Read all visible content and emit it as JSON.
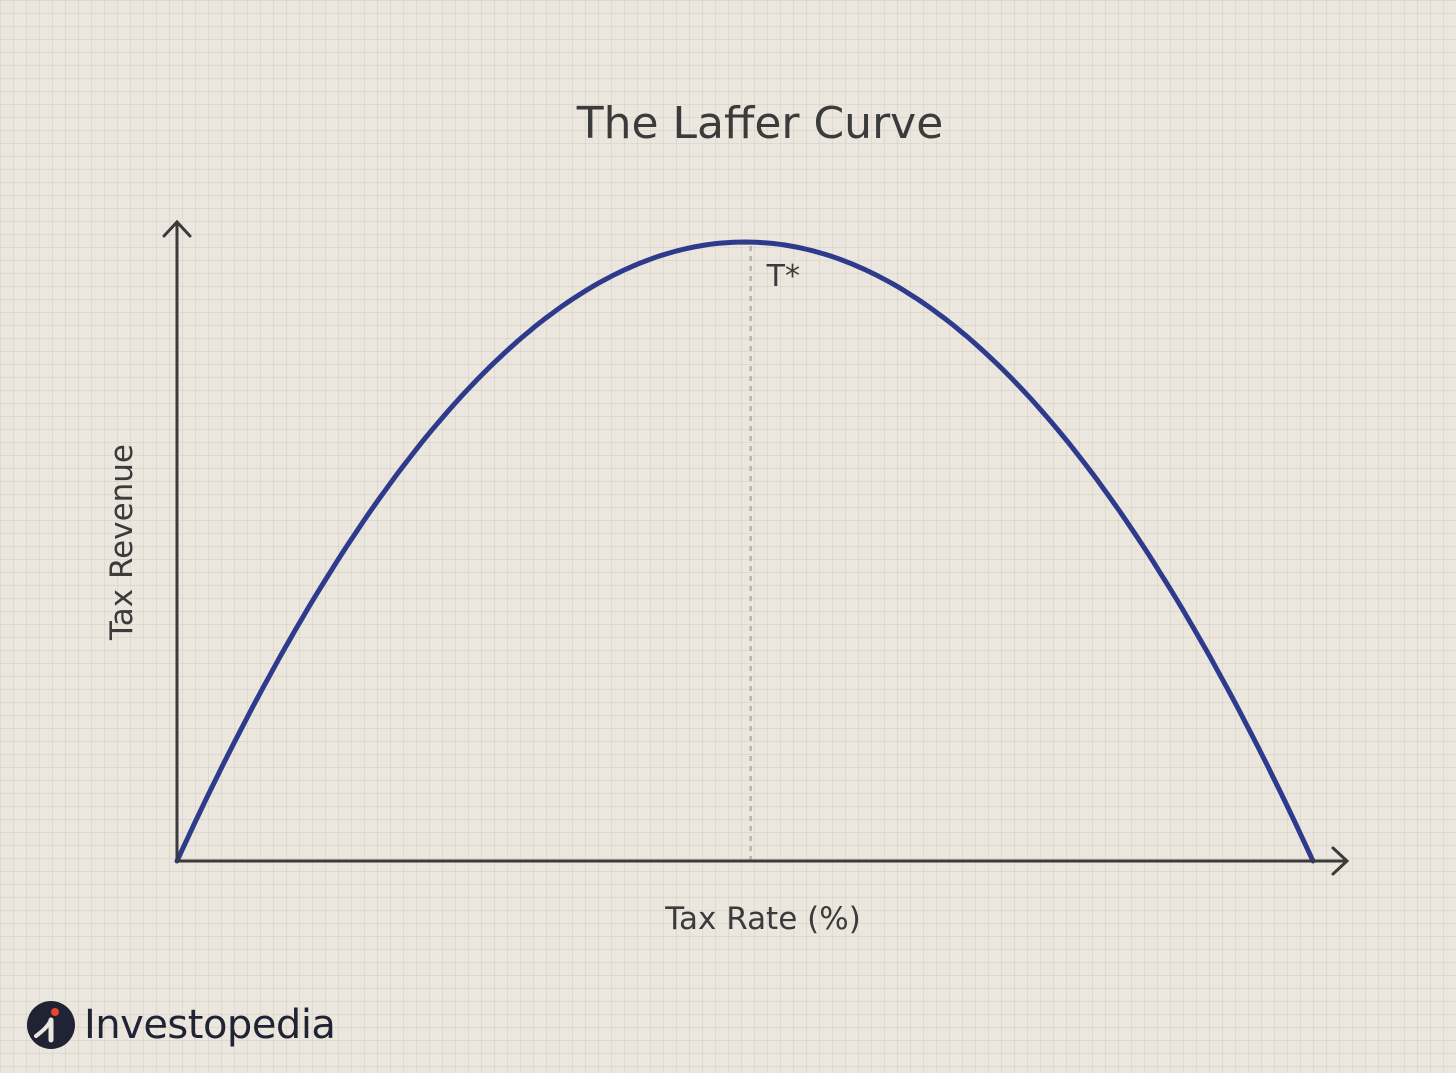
{
  "chart_data": {
    "type": "line",
    "title": "The Laffer Curve",
    "xlabel": "Tax Rate (%)",
    "ylabel": "Tax Revenue",
    "xlim": [
      0,
      100
    ],
    "ylim": [
      0,
      100
    ],
    "grid": false,
    "series": [
      {
        "curve": "parabola",
        "color": "#2e3a8c",
        "x": [
          0,
          10,
          20,
          30,
          40,
          50,
          60,
          70,
          80,
          90,
          100
        ],
        "y": [
          0,
          34,
          60,
          80,
          93,
          97,
          93,
          80,
          60,
          34,
          0
        ]
      }
    ],
    "annotations": [
      {
        "text": "T*",
        "x": 50.5,
        "y": 97
      }
    ],
    "reference_lines": [
      {
        "type": "vertical",
        "x": 50.5,
        "style": "dashed",
        "color": "#b9b4ad"
      }
    ]
  },
  "branding": {
    "logo_text": "Investopedia",
    "logo_icon": "investopedia-logo-icon",
    "logo_color": "#1f2333",
    "logo_accent": "#e8452c"
  },
  "colors": {
    "background": "#ebe6de",
    "axis": "#3b3b3b",
    "curve": "#2e3a8c",
    "reference_line": "#b9b4ad"
  }
}
